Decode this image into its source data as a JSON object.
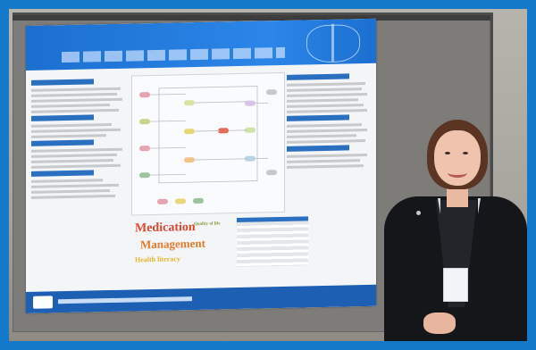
{
  "photo": {
    "subject": "",
    "poster": {
      "wordcloud": [
        "Medication",
        "Management",
        "Quality of life",
        "Health literacy"
      ]
    }
  }
}
